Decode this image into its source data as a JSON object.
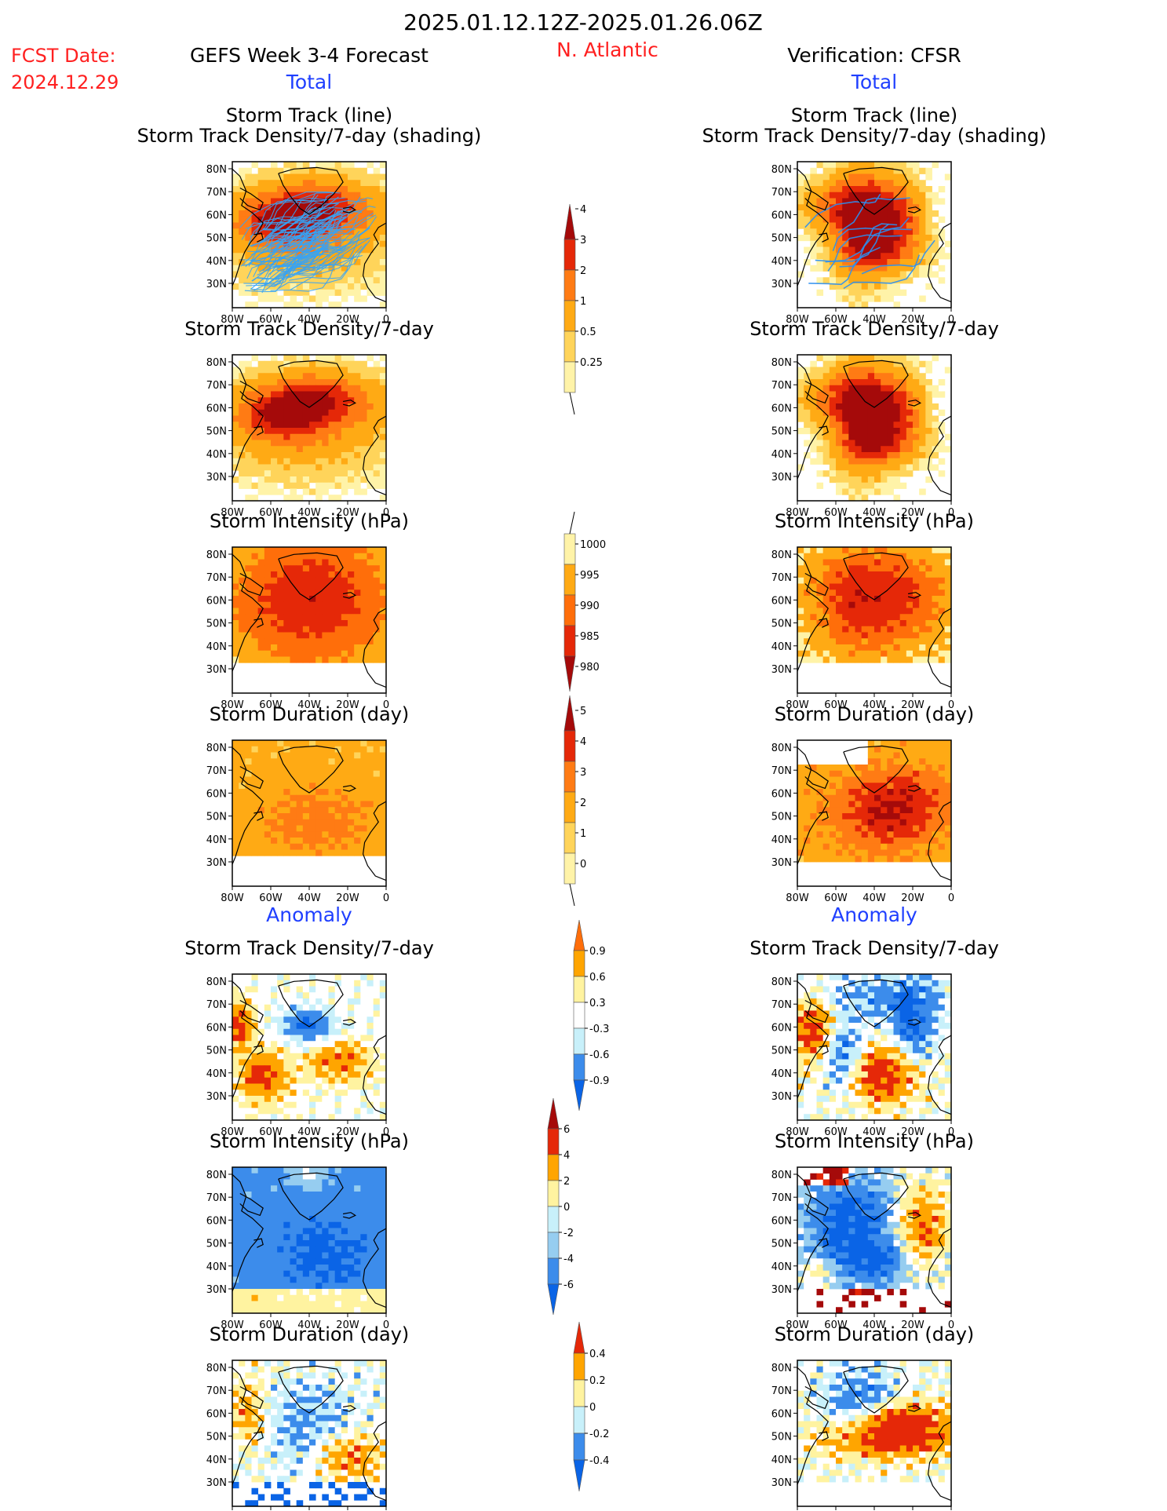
{
  "header": {
    "period": "2025.01.12.12Z-2025.01.26.06Z",
    "fcst_label": "FCST Date:",
    "fcst_date": "2024.12.29",
    "product": "GEFS Week 3-4 Forecast",
    "region": "N. Atlantic",
    "verification": "Verification: CFSR",
    "total_left": "Total",
    "total_right": "Total",
    "anomaly_left": "Anomaly",
    "anomaly_right": "Anomaly"
  },
  "colors": {
    "text": "#000000",
    "red_label": "#ff2020",
    "blue_label": "#1f3fff",
    "positive_scale": [
      "#fff3a8",
      "#ffd45a",
      "#ffaa14",
      "#ff7b14",
      "#e52808",
      "#a50a0a"
    ],
    "intensity_scale": [
      "#a50a0a",
      "#e52808",
      "#ff6e0a",
      "#ffaa14",
      "#fff3a8"
    ],
    "anomaly_scale": [
      "#0a64e6",
      "#3c8ceb",
      "#96cdf0",
      "#c8f0fa",
      "#ffffff",
      "#fff3a0",
      "#ffd450",
      "#ffa500",
      "#ff6e0a",
      "#e52808",
      "#a50a0a"
    ],
    "track_line": "#36a3f5",
    "obs_track_line": "#2c8ff0"
  },
  "map_axes": {
    "lon_ticks": [
      "80W",
      "60W",
      "40W",
      "20W",
      "0"
    ],
    "lat_ticks": [
      "80N",
      "70N",
      "60N",
      "50N",
      "40N",
      "30N"
    ]
  },
  "panels": {
    "track_left": {
      "title1": "Storm Track (line)",
      "title2": "Storm Track Density/7-day (shading)"
    },
    "track_right": {
      "title1": "Storm Track (line)",
      "title2": "Storm Track Density/7-day (shading)"
    },
    "density_left": {
      "title": "Storm Track Density/7-day"
    },
    "density_right": {
      "title": "Storm Track Density/7-day"
    },
    "intensity_left": {
      "title": "Storm Intensity (hPa)"
    },
    "intensity_right": {
      "title": "Storm Intensity (hPa)"
    },
    "duration_left": {
      "title": "Storm Duration (day)"
    },
    "duration_right": {
      "title": "Storm Duration (day)"
    },
    "a_density_left": {
      "title": "Storm Track Density/7-day"
    },
    "a_density_right": {
      "title": "Storm Track Density/7-day"
    },
    "a_intensity_left": {
      "title": "Storm Intensity (hPa)"
    },
    "a_intensity_right": {
      "title": "Storm Intensity (hPa)"
    },
    "a_duration_left": {
      "title": "Storm Duration (day)"
    },
    "a_duration_right": {
      "title": "Storm Duration (day)"
    }
  },
  "chart_data": [
    {
      "type": "heatmap",
      "colorbar": "density_total",
      "levels": [
        "4",
        "3",
        "2",
        "1",
        "0.5",
        "0.25"
      ],
      "units": "storm tracks / 7-day",
      "region_lon": [
        -80,
        0
      ],
      "region_lat": [
        25,
        85
      ]
    },
    {
      "type": "heatmap",
      "colorbar": "intensity_total",
      "levels": [
        "1000",
        "995",
        "990",
        "985",
        "980"
      ],
      "units": "hPa"
    },
    {
      "type": "heatmap",
      "colorbar": "duration_total",
      "levels": [
        "5",
        "4",
        "3",
        "2",
        "1",
        "0"
      ],
      "units": "day"
    },
    {
      "type": "heatmap",
      "colorbar": "density_anomaly",
      "levels": [
        "0.9",
        "0.6",
        "0.3",
        "-0.3",
        "-0.6",
        "-0.9"
      ]
    },
    {
      "type": "heatmap",
      "colorbar": "intensity_anomaly",
      "levels": [
        "6",
        "4",
        "2",
        "0",
        "-2",
        "-4",
        "-6"
      ],
      "units": "hPa"
    },
    {
      "type": "heatmap",
      "colorbar": "duration_anomaly",
      "levels": [
        "0.4",
        "0.2",
        "0",
        "-0.2",
        "-0.4"
      ],
      "units": "day"
    }
  ]
}
